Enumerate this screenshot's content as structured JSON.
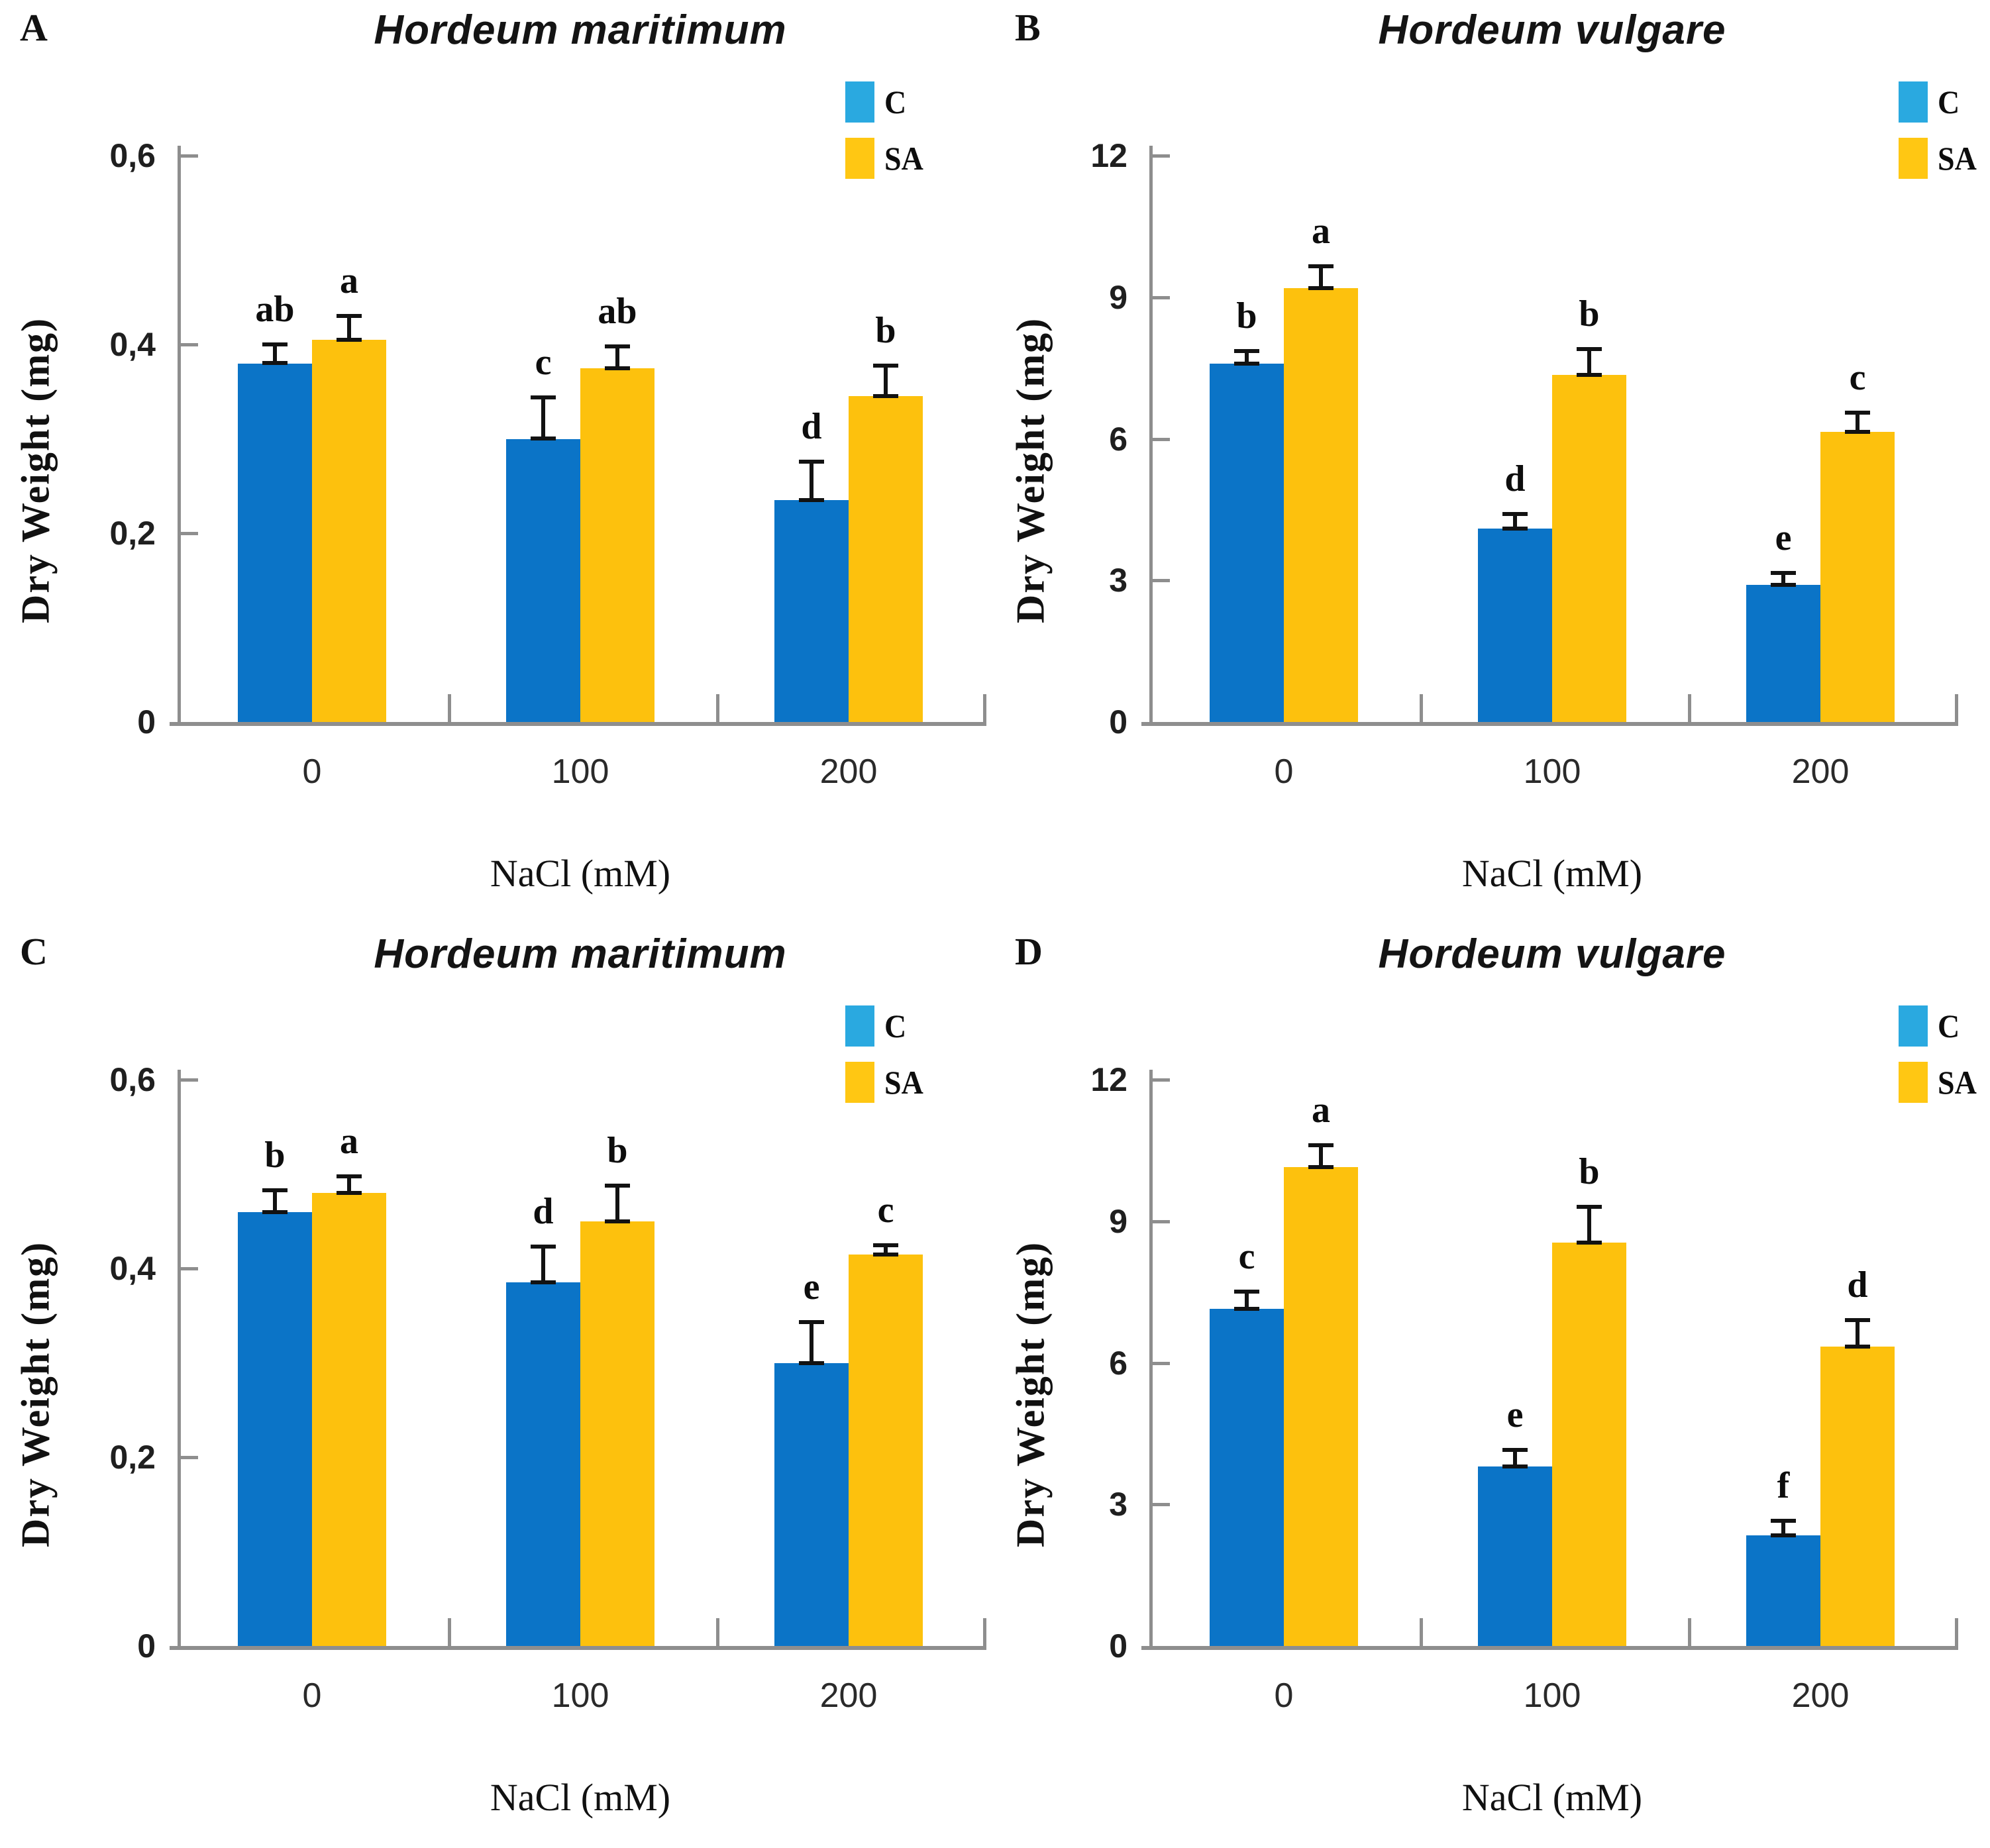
{
  "chart_data": [
    {
      "type": "bar",
      "panel": "A",
      "title": "Hordeum maritimum",
      "xlabel": "NaCl (mM)",
      "ylabel": "Dry Weight (mg)",
      "categories": [
        "0",
        "100",
        "200"
      ],
      "ylim": [
        0,
        0.6
      ],
      "yticks": [
        {
          "v": 0.6,
          "label": "0,6"
        },
        {
          "v": 0.4,
          "label": "0,4"
        },
        {
          "v": 0.2,
          "label": "0,2"
        },
        {
          "v": 0,
          "label": "0"
        }
      ],
      "legend_position": "top-right",
      "grid": false,
      "series": [
        {
          "name": "C",
          "color": "#0b74c7",
          "legend_color": "#2aa9e0",
          "values": [
            0.38,
            0.3,
            0.235
          ],
          "errors": [
            0.022,
            0.046,
            0.043
          ],
          "letters": [
            "ab",
            "c",
            "d"
          ]
        },
        {
          "name": "SA",
          "color": "#fdc10d",
          "legend_color": "#ffc713",
          "values": [
            0.405,
            0.375,
            0.345
          ],
          "errors": [
            0.027,
            0.025,
            0.035
          ],
          "letters": [
            "a",
            "ab",
            "b"
          ]
        }
      ]
    },
    {
      "type": "bar",
      "panel": "B",
      "title": "Hordeum vulgare",
      "xlabel": "NaCl (mM)",
      "ylabel": "Dry Weight (mg)",
      "categories": [
        "0",
        "100",
        "200"
      ],
      "ylim": [
        0,
        12
      ],
      "yticks": [
        {
          "v": 12,
          "label": "12"
        },
        {
          "v": 9,
          "label": "9"
        },
        {
          "v": 6,
          "label": "6"
        },
        {
          "v": 3,
          "label": "3"
        },
        {
          "v": 0,
          "label": "0"
        }
      ],
      "legend_position": "top-right",
      "grid": false,
      "series": [
        {
          "name": "C",
          "color": "#0b74c7",
          "legend_color": "#2aa9e0",
          "values": [
            7.6,
            4.1,
            2.9
          ],
          "errors": [
            0.3,
            0.35,
            0.3
          ],
          "letters": [
            "b",
            "d",
            "e"
          ]
        },
        {
          "name": "SA",
          "color": "#fdc10d",
          "legend_color": "#ffc713",
          "values": [
            9.2,
            7.35,
            6.15
          ],
          "errors": [
            0.5,
            0.6,
            0.45
          ],
          "letters": [
            "a",
            "b",
            "c"
          ]
        }
      ]
    },
    {
      "type": "bar",
      "panel": "C",
      "title": "Hordeum maritimum",
      "xlabel": "NaCl (mM)",
      "ylabel": "Dry Weight (mg)",
      "categories": [
        "0",
        "100",
        "200"
      ],
      "ylim": [
        0,
        0.6
      ],
      "yticks": [
        {
          "v": 0.6,
          "label": "0,6"
        },
        {
          "v": 0.4,
          "label": "0,4"
        },
        {
          "v": 0.2,
          "label": "0,2"
        },
        {
          "v": 0,
          "label": "0"
        }
      ],
      "legend_position": "top-right",
      "grid": false,
      "series": [
        {
          "name": "C",
          "color": "#0b74c7",
          "legend_color": "#2aa9e0",
          "values": [
            0.46,
            0.385,
            0.3
          ],
          "errors": [
            0.025,
            0.04,
            0.045
          ],
          "letters": [
            "b",
            "d",
            "e"
          ]
        },
        {
          "name": "SA",
          "color": "#fdc10d",
          "legend_color": "#ffc713",
          "values": [
            0.48,
            0.45,
            0.415
          ],
          "errors": [
            0.02,
            0.04,
            0.012
          ],
          "letters": [
            "a",
            "b",
            "c"
          ]
        }
      ]
    },
    {
      "type": "bar",
      "panel": "D",
      "title": "Hordeum vulgare",
      "xlabel": "NaCl (mM)",
      "ylabel": "Dry Weight (mg)",
      "categories": [
        "0",
        "100",
        "200"
      ],
      "ylim": [
        0,
        12
      ],
      "yticks": [
        {
          "v": 12,
          "label": "12"
        },
        {
          "v": 9,
          "label": "9"
        },
        {
          "v": 6,
          "label": "6"
        },
        {
          "v": 3,
          "label": "3"
        },
        {
          "v": 0,
          "label": "0"
        }
      ],
      "legend_position": "top-right",
      "grid": false,
      "series": [
        {
          "name": "C",
          "color": "#0b74c7",
          "legend_color": "#2aa9e0",
          "values": [
            7.15,
            3.8,
            2.35
          ],
          "errors": [
            0.4,
            0.4,
            0.35
          ],
          "letters": [
            "c",
            "e",
            "f"
          ]
        },
        {
          "name": "SA",
          "color": "#fdc10d",
          "legend_color": "#ffc713",
          "values": [
            10.15,
            8.55,
            6.35
          ],
          "errors": [
            0.5,
            0.8,
            0.6
          ],
          "letters": [
            "a",
            "b",
            "d"
          ]
        }
      ]
    }
  ]
}
